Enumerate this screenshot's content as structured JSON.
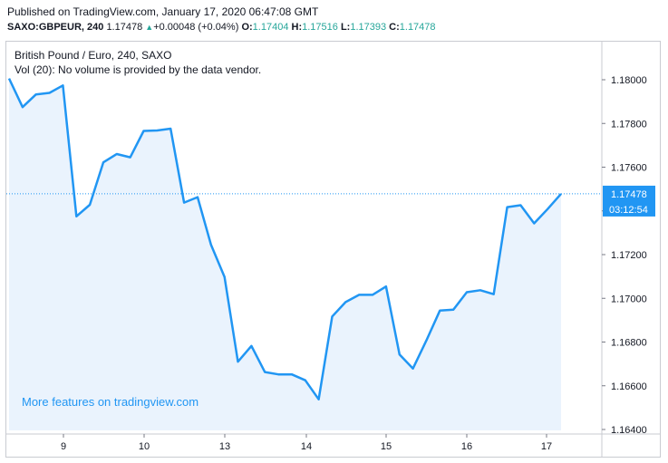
{
  "header": {
    "published": "Published on TradingView.com, January 17, 2020 06:47:08 GMT",
    "symbol": "SAXO:GBPEUR, 240",
    "last": "1.17478",
    "up_arrow": "▲",
    "change": "+0.00048 (+0.04%)",
    "o_label": "O:",
    "o_value": "1.17404",
    "h_label": "H:",
    "h_value": "1.17516",
    "l_label": "L:",
    "l_value": "1.17393",
    "c_label": "C:",
    "c_value": "1.17478"
  },
  "legend": {
    "title": "British Pound / Euro, 240, SAXO",
    "volume_note": "Vol (20): No volume is provided by the data vendor."
  },
  "promo": "More features on tradingview.com",
  "price_tag": {
    "price": "1.17478",
    "countdown": "03:12:54"
  },
  "colors": {
    "line": "#2196f3",
    "fill": "#eaf3fd",
    "tag_bg": "#2196f3",
    "axis": "#c9cbd1"
  },
  "chart_data": {
    "type": "area",
    "x_ticks": [
      "9",
      "10",
      "13",
      "14",
      "15",
      "16",
      "17"
    ],
    "y_ticks": [
      "1.18000",
      "1.17800",
      "1.17600",
      "1.17400",
      "1.17200",
      "1.17000",
      "1.16800",
      "1.16600",
      "1.16400"
    ],
    "ylim": [
      1.164,
      1.18
    ],
    "grid": false,
    "last_value": 1.17478,
    "values": [
      1.18006,
      1.17875,
      1.17933,
      1.1794,
      1.17974,
      1.17375,
      1.17428,
      1.17622,
      1.1766,
      1.17645,
      1.17766,
      1.17768,
      1.17776,
      1.17438,
      1.17463,
      1.17245,
      1.17098,
      1.1671,
      1.16782,
      1.16663,
      1.16652,
      1.16652,
      1.16625,
      1.16538,
      1.16917,
      1.16983,
      1.17016,
      1.17016,
      1.17054,
      1.16743,
      1.16679,
      1.16808,
      1.16944,
      1.16948,
      1.17028,
      1.17037,
      1.17019,
      1.17417,
      1.17426,
      1.17343,
      1.17408,
      1.17478
    ]
  }
}
